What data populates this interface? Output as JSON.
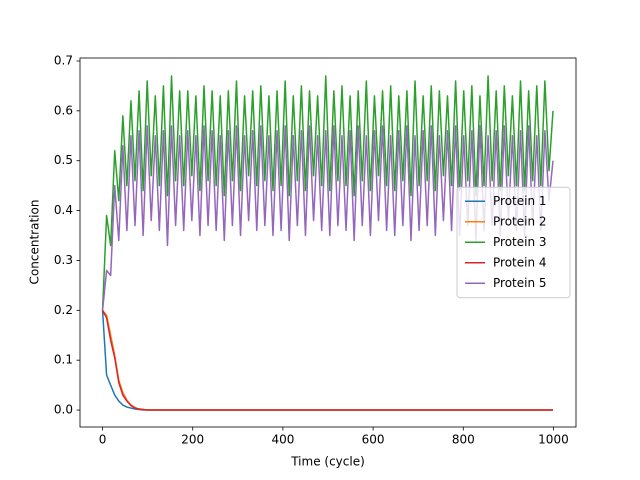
{
  "chart_data": {
    "type": "line",
    "xlabel": "Time (cycle)",
    "ylabel": "Concentration",
    "xlim": [
      -50,
      1050
    ],
    "xticks": [
      0,
      200,
      400,
      600,
      800,
      1000
    ],
    "ylim": [
      -0.034,
      0.706
    ],
    "yticks": [
      {
        "value": 0,
        "label": "0.0"
      },
      0.1,
      0.2,
      0.3,
      0.4,
      0.5,
      0.6,
      0.7
    ],
    "legend": "center right",
    "x": [
      0,
      9,
      18,
      27,
      36,
      45,
      54,
      63,
      72,
      81,
      90,
      99,
      108,
      117,
      126,
      135,
      144,
      153,
      162,
      171,
      180,
      189,
      198,
      207,
      216,
      225,
      234,
      243,
      252,
      261,
      270,
      279,
      288,
      297,
      306,
      315,
      324,
      333,
      342,
      351,
      360,
      369,
      378,
      387,
      396,
      405,
      414,
      423,
      432,
      441,
      450,
      459,
      468,
      477,
      486,
      495,
      504,
      513,
      522,
      531,
      540,
      549,
      558,
      567,
      576,
      585,
      594,
      603,
      612,
      621,
      630,
      639,
      648,
      657,
      666,
      675,
      684,
      693,
      702,
      711,
      720,
      729,
      738,
      747,
      756,
      765,
      774,
      783,
      792,
      801,
      810,
      819,
      828,
      837,
      846,
      855,
      864,
      873,
      882,
      891,
      900,
      909,
      918,
      927,
      936,
      945,
      954,
      963,
      972,
      981,
      990,
      999
    ],
    "series": [
      {
        "name": "Protein 1",
        "color": "#1f77b4",
        "values": [
          0.2,
          0.07,
          0.05,
          0.03,
          0.018,
          0.01,
          0.006,
          0.004,
          0.002,
          0.001,
          0,
          0,
          0,
          0,
          0,
          0,
          0,
          0,
          0,
          0,
          0,
          0,
          0,
          0,
          0,
          0,
          0,
          0,
          0,
          0,
          0,
          0,
          0,
          0,
          0,
          0,
          0,
          0,
          0,
          0,
          0,
          0,
          0,
          0,
          0,
          0,
          0,
          0,
          0,
          0,
          0,
          0,
          0,
          0,
          0,
          0,
          0,
          0,
          0,
          0,
          0,
          0,
          0,
          0,
          0,
          0,
          0,
          0,
          0,
          0,
          0,
          0,
          0,
          0,
          0,
          0,
          0,
          0,
          0,
          0,
          0,
          0,
          0,
          0,
          0,
          0,
          0,
          0,
          0,
          0,
          0,
          0,
          0,
          0,
          0,
          0,
          0,
          0,
          0,
          0,
          0,
          0,
          0,
          0,
          0,
          0,
          0,
          0,
          0,
          0,
          0,
          0
        ]
      },
      {
        "name": "Protein 2",
        "color": "#ff7f0e",
        "values": [
          0.2,
          0.19,
          0.15,
          0.11,
          0.06,
          0.035,
          0.02,
          0.01,
          0.005,
          0.002,
          0.001,
          0,
          0,
          0,
          0,
          0,
          0,
          0,
          0,
          0,
          0,
          0,
          0,
          0,
          0,
          0,
          0,
          0,
          0,
          0,
          0,
          0,
          0,
          0,
          0,
          0,
          0,
          0,
          0,
          0,
          0,
          0,
          0,
          0,
          0,
          0,
          0,
          0,
          0,
          0,
          0,
          0,
          0,
          0,
          0,
          0,
          0,
          0,
          0,
          0,
          0,
          0,
          0,
          0,
          0,
          0,
          0,
          0,
          0,
          0,
          0,
          0,
          0,
          0,
          0,
          0,
          0,
          0,
          0,
          0,
          0,
          0,
          0,
          0,
          0,
          0,
          0,
          0,
          0,
          0,
          0,
          0,
          0,
          0,
          0,
          0,
          0,
          0,
          0,
          0,
          0,
          0,
          0,
          0,
          0,
          0,
          0,
          0,
          0,
          0,
          0,
          0
        ]
      },
      {
        "name": "Protein 3",
        "color": "#2ca02c",
        "values": [
          0.2,
          0.39,
          0.33,
          0.52,
          0.42,
          0.59,
          0.45,
          0.62,
          0.46,
          0.64,
          0.44,
          0.66,
          0.47,
          0.63,
          0.45,
          0.65,
          0.43,
          0.67,
          0.46,
          0.64,
          0.45,
          0.64,
          0.47,
          0.63,
          0.44,
          0.65,
          0.46,
          0.64,
          0.45,
          0.63,
          0.43,
          0.64,
          0.46,
          0.66,
          0.44,
          0.63,
          0.47,
          0.64,
          0.45,
          0.65,
          0.46,
          0.63,
          0.44,
          0.64,
          0.45,
          0.66,
          0.43,
          0.63,
          0.46,
          0.65,
          0.44,
          0.64,
          0.47,
          0.63,
          0.45,
          0.67,
          0.44,
          0.64,
          0.46,
          0.65,
          0.45,
          0.63,
          0.43,
          0.64,
          0.46,
          0.66,
          0.44,
          0.63,
          0.47,
          0.64,
          0.45,
          0.65,
          0.44,
          0.63,
          0.46,
          0.64,
          0.43,
          0.66,
          0.45,
          0.63,
          0.46,
          0.65,
          0.44,
          0.64,
          0.47,
          0.63,
          0.45,
          0.66,
          0.44,
          0.64,
          0.46,
          0.65,
          0.43,
          0.63,
          0.45,
          0.67,
          0.46,
          0.64,
          0.44,
          0.65,
          0.47,
          0.63,
          0.45,
          0.66,
          0.44,
          0.64,
          0.46,
          0.65,
          0.45,
          0.66,
          0.48,
          0.6
        ]
      },
      {
        "name": "Protein 4",
        "color": "#d62728",
        "values": [
          0.2,
          0.185,
          0.14,
          0.105,
          0.055,
          0.03,
          0.018,
          0.009,
          0.004,
          0.002,
          0.001,
          0,
          0,
          0,
          0,
          0,
          0,
          0,
          0,
          0,
          0,
          0,
          0,
          0,
          0,
          0,
          0,
          0,
          0,
          0,
          0,
          0,
          0,
          0,
          0,
          0,
          0,
          0,
          0,
          0,
          0,
          0,
          0,
          0,
          0,
          0,
          0,
          0,
          0,
          0,
          0,
          0,
          0,
          0,
          0,
          0,
          0,
          0,
          0,
          0,
          0,
          0,
          0,
          0,
          0,
          0,
          0,
          0,
          0,
          0,
          0,
          0,
          0,
          0,
          0,
          0,
          0,
          0,
          0,
          0,
          0,
          0,
          0,
          0,
          0,
          0,
          0,
          0,
          0,
          0,
          0,
          0,
          0,
          0,
          0,
          0,
          0,
          0,
          0,
          0,
          0,
          0,
          0,
          0,
          0,
          0,
          0,
          0,
          0,
          0,
          0,
          0
        ]
      },
      {
        "name": "Protein 5",
        "color": "#9467bd",
        "values": [
          0.2,
          0.28,
          0.27,
          0.45,
          0.34,
          0.53,
          0.36,
          0.55,
          0.37,
          0.56,
          0.35,
          0.57,
          0.38,
          0.55,
          0.36,
          0.56,
          0.33,
          0.57,
          0.37,
          0.55,
          0.36,
          0.56,
          0.38,
          0.55,
          0.35,
          0.57,
          0.37,
          0.56,
          0.36,
          0.55,
          0.34,
          0.56,
          0.37,
          0.57,
          0.35,
          0.55,
          0.38,
          0.56,
          0.36,
          0.57,
          0.37,
          0.55,
          0.35,
          0.56,
          0.36,
          0.57,
          0.34,
          0.55,
          0.37,
          0.56,
          0.35,
          0.57,
          0.38,
          0.55,
          0.36,
          0.56,
          0.35,
          0.57,
          0.37,
          0.55,
          0.36,
          0.56,
          0.34,
          0.57,
          0.37,
          0.55,
          0.35,
          0.56,
          0.38,
          0.57,
          0.36,
          0.55,
          0.35,
          0.56,
          0.37,
          0.57,
          0.34,
          0.55,
          0.36,
          0.56,
          0.37,
          0.57,
          0.35,
          0.55,
          0.38,
          0.56,
          0.36,
          0.57,
          0.35,
          0.55,
          0.37,
          0.56,
          0.34,
          0.57,
          0.36,
          0.55,
          0.37,
          0.56,
          0.35,
          0.57,
          0.38,
          0.55,
          0.36,
          0.56,
          0.35,
          0.57,
          0.37,
          0.55,
          0.36,
          0.56,
          0.42,
          0.5
        ]
      }
    ]
  }
}
